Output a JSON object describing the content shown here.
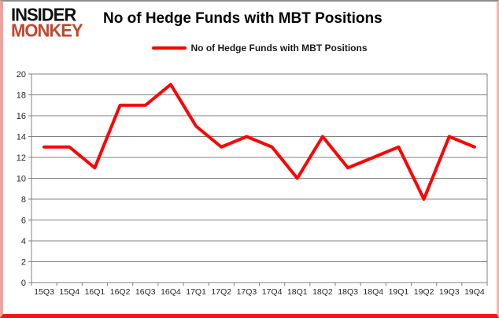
{
  "logo": {
    "line1": "INSIDER",
    "line2": "MONKEY",
    "line2_color": "#c0462f"
  },
  "header": {
    "title": "No of Hedge Funds with MBT Positions"
  },
  "legend": {
    "label": "No of Hedge Funds with MBT Positions",
    "swatch_color": "#ff0000"
  },
  "colors": {
    "series_line": "#ff0000",
    "grid": "#808080",
    "axis_text": "#262626",
    "frame_bottom": "#fe1111",
    "frame_side_glow": "#eda39d",
    "frame_top": "#8c8c8c",
    "logo_red": "#c0462f"
  },
  "chart_data": {
    "type": "line",
    "title": "No of Hedge Funds with MBT Positions",
    "categories": [
      "15Q3",
      "15Q4",
      "16Q1",
      "16Q2",
      "16Q3",
      "16Q4",
      "17Q1",
      "17Q2",
      "17Q3",
      "17Q4",
      "18Q1",
      "18Q2",
      "18Q3",
      "18Q4",
      "19Q1",
      "19Q2",
      "19Q3",
      "19Q4"
    ],
    "series": [
      {
        "name": "No of Hedge Funds with MBT Positions",
        "values": [
          13,
          13,
          11,
          17,
          17,
          19,
          15,
          13,
          14,
          13,
          10,
          14,
          11,
          12,
          13,
          8,
          14,
          13
        ]
      }
    ],
    "xlabel": "",
    "ylabel": "",
    "ylim": [
      0,
      20
    ],
    "ytick_step": 2,
    "grid": true,
    "legend_position": "top-center",
    "line_color": "#ff0000",
    "line_width": 4,
    "grid_color": "#808080"
  }
}
